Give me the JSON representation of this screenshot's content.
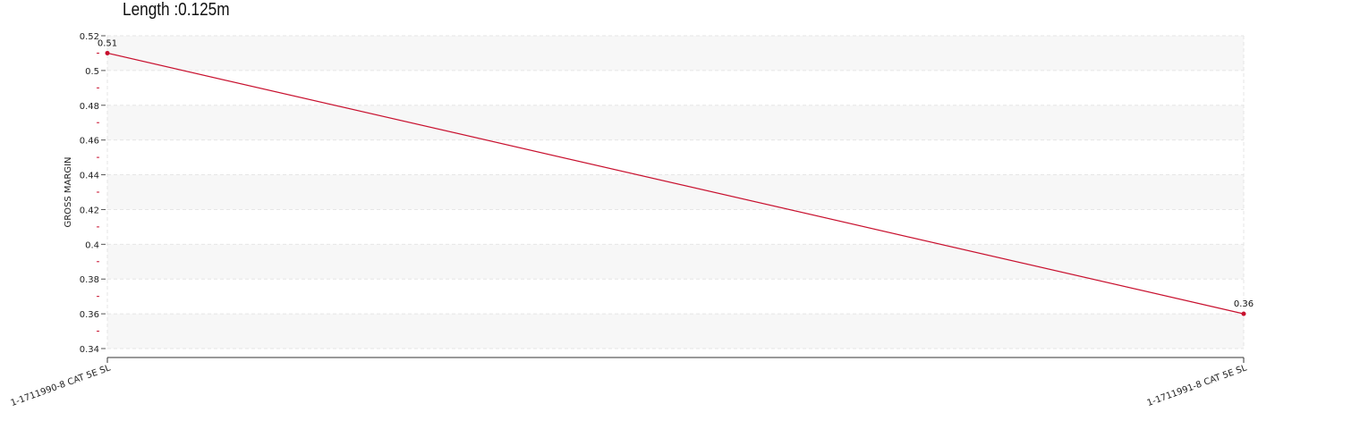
{
  "chart_data": {
    "type": "line",
    "title": "Length :0.125m",
    "ylabel": "GROSS MARGIN",
    "xlabel": "",
    "categories": [
      "1-1711990-8 CAT 5E SL",
      "1-1711991-8 CAT 5E SL"
    ],
    "series": [
      {
        "values": [
          0.51,
          0.36
        ],
        "data_labels": [
          "0.51",
          "0.36"
        ],
        "color": "#c8102e"
      }
    ],
    "ylim": [
      0.34,
      0.52
    ],
    "yticks": [
      0.34,
      0.36,
      0.38,
      0.4,
      0.42,
      0.44,
      0.46,
      0.48,
      0.5,
      0.52
    ],
    "ytick_labels": [
      "0.34",
      "0.36",
      "0.38",
      "0.4",
      "0.42",
      "0.44",
      "0.46",
      "0.48",
      "0.5",
      "0.52"
    ],
    "grid": true,
    "band_color": "#f7f7f7",
    "grid_color": "#e6e6e6",
    "legend": "none"
  }
}
